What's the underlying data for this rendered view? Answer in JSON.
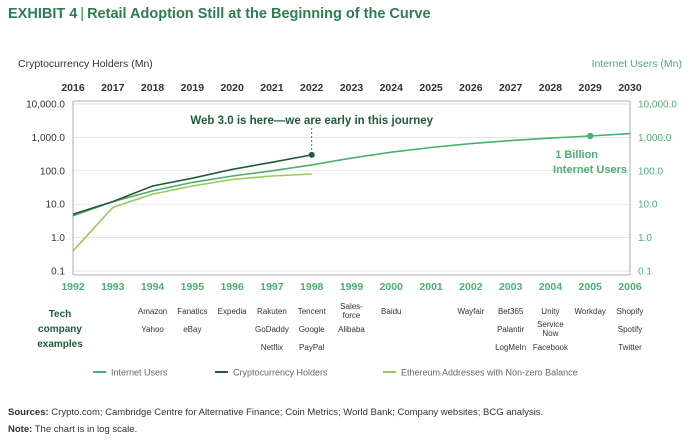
{
  "title": {
    "exhibit": "EXHIBIT 4",
    "separator": "|",
    "text": "Retail Adoption Still at the Beginning of the Curve"
  },
  "chart_data": {
    "type": "line",
    "left_axis_label": "Cryptocurrency Holders (Mn)",
    "right_axis_label": "Internet Users (Mn)",
    "scale": "log",
    "ylim": [
      0.1,
      10000
    ],
    "y_ticks": [
      "10,000.0",
      "1,000.0",
      "100.0",
      "10.0",
      "1.0",
      "0.1"
    ],
    "top_years": [
      "2016",
      "2017",
      "2018",
      "2019",
      "2020",
      "2021",
      "2022",
      "2023",
      "2024",
      "2025",
      "2026",
      "2027",
      "2028",
      "2029",
      "2030"
    ],
    "bottom_years": [
      "1992",
      "1993",
      "1994",
      "1995",
      "1996",
      "1997",
      "1998",
      "1999",
      "2000",
      "2001",
      "2002",
      "2003",
      "2004",
      "2005",
      "2006"
    ],
    "series": [
      {
        "name": "Internet Users",
        "color": "#4caf72",
        "index": [
          0,
          1,
          2,
          3,
          4,
          5,
          6,
          7,
          8,
          9,
          10,
          11,
          12,
          13,
          14
        ],
        "values": [
          4.5,
          12,
          25,
          45,
          70,
          100,
          150,
          240,
          360,
          500,
          650,
          800,
          950,
          1100,
          1300
        ]
      },
      {
        "name": "Cryptocurrency Holders",
        "color": "#1f5c3a",
        "index": [
          0,
          1,
          2,
          3,
          4,
          5,
          6
        ],
        "values": [
          5,
          12,
          35,
          60,
          110,
          180,
          300
        ]
      },
      {
        "name": "Ethereum Addresses with Non-zero Balance",
        "color": "#9bc85a",
        "index": [
          0,
          1,
          2,
          3,
          4,
          5,
          6
        ],
        "values": [
          0.4,
          8,
          20,
          35,
          55,
          70,
          80
        ]
      }
    ],
    "annotations": [
      {
        "text": "Web 3.0 is here—we are early in this journey"
      },
      {
        "text": "1 Billion"
      },
      {
        "text": "Internet Users"
      }
    ],
    "company_examples_label": [
      "Tech",
      "company",
      "examples"
    ],
    "company_examples": [
      [],
      [],
      [
        "Amazon",
        "Yahoo"
      ],
      [
        "Fanatics",
        "eBay"
      ],
      [
        "Expedia"
      ],
      [
        "Rakuten",
        "GoDaddy",
        "Netflix"
      ],
      [
        "Tencent",
        "Google",
        "PayPal"
      ],
      [
        "Sales-\nforce",
        "Alibaba"
      ],
      [
        "Baidu"
      ],
      [],
      [
        "Wayfair"
      ],
      [
        "Bet365",
        "Palantir",
        "LogMeIn"
      ],
      [
        "Unity",
        "Service\nNow",
        "Facebook"
      ],
      [
        "Workday"
      ],
      [
        "Shopify",
        "Spotify",
        "Twitter"
      ]
    ],
    "legend": [
      "Internet Users",
      "Cryptocurrency Holders",
      "Ethereum Addresses with Non-zero Balance"
    ]
  },
  "footer": {
    "sources_label": "Sources:",
    "sources_text": "Crypto.com; Cambridge Centre for Alternative Finance; Coin Metrics; World Bank; Company websites; BCG analysis.",
    "note_label": "Note:",
    "note_text": "The chart is in log scale."
  }
}
